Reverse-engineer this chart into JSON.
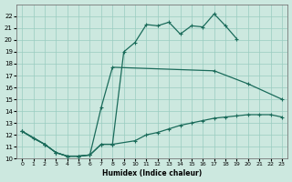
{
  "xlabel": "Humidex (Indice chaleur)",
  "xlim": [
    -0.5,
    23.5
  ],
  "ylim": [
    10,
    23
  ],
  "yticks": [
    10,
    11,
    12,
    13,
    14,
    15,
    16,
    17,
    18,
    19,
    20,
    21,
    22
  ],
  "xticks": [
    0,
    1,
    2,
    3,
    4,
    5,
    6,
    7,
    8,
    9,
    10,
    11,
    12,
    13,
    14,
    15,
    16,
    17,
    18,
    19,
    20,
    21,
    22,
    23
  ],
  "bg_color": "#cce8df",
  "grid_color": "#99ccc0",
  "line_color": "#1a6b5a",
  "line1_x": [
    0,
    1,
    2,
    3,
    4,
    5,
    6,
    7,
    8,
    9,
    10,
    11,
    12,
    13,
    14,
    15,
    16,
    17,
    18,
    19
  ],
  "line1_y": [
    12.3,
    11.7,
    11.2,
    10.5,
    10.2,
    10.2,
    10.3,
    11.2,
    11.2,
    19.0,
    19.8,
    21.3,
    21.2,
    21.5,
    20.5,
    21.2,
    21.1,
    22.2,
    21.2,
    20.1
  ],
  "line2_x": [
    0,
    2,
    3,
    4,
    5,
    6,
    7,
    8,
    17,
    20,
    23
  ],
  "line2_y": [
    12.3,
    11.2,
    10.5,
    10.2,
    10.2,
    10.3,
    14.3,
    17.7,
    17.4,
    16.3,
    15.0
  ],
  "line3_x": [
    0,
    2,
    3,
    4,
    5,
    6,
    7,
    8,
    10,
    11,
    12,
    13,
    14,
    15,
    16,
    17,
    18,
    19,
    20,
    21,
    22,
    23
  ],
  "line3_y": [
    12.3,
    11.2,
    10.5,
    10.2,
    10.2,
    10.3,
    11.2,
    11.2,
    11.5,
    12.0,
    12.2,
    12.5,
    12.8,
    13.0,
    13.2,
    13.4,
    13.5,
    13.6,
    13.7,
    13.7,
    13.7,
    13.5
  ]
}
